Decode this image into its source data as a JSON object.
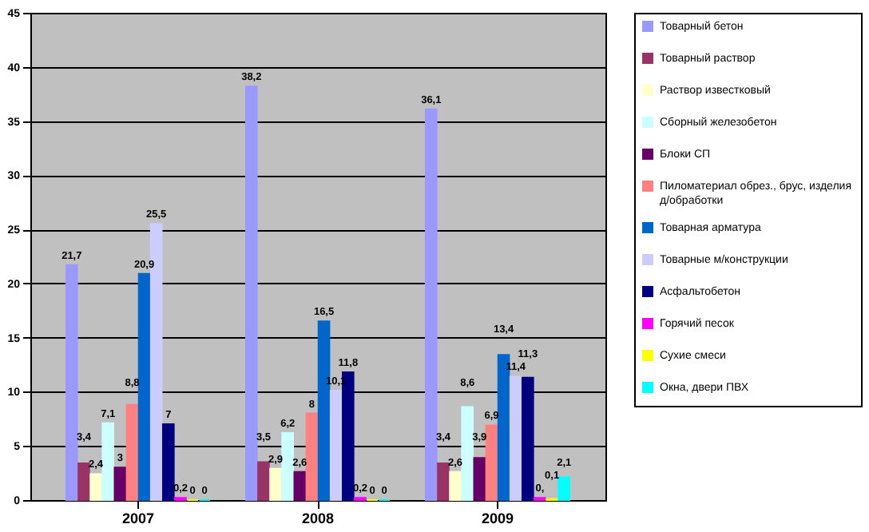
{
  "chart_data": {
    "type": "bar",
    "categories": [
      "2007",
      "2008",
      "2009"
    ],
    "ylim": [
      0,
      45
    ],
    "yticks": [
      0,
      5,
      10,
      15,
      20,
      25,
      30,
      35,
      40,
      45
    ],
    "grid": "y",
    "legend": "right",
    "series": [
      {
        "name": "Товарный бетон",
        "color": "#9999ff",
        "values": [
          21.7,
          38.2,
          36.1
        ],
        "value_labels": [
          "21,7",
          "38,2",
          "36,1"
        ]
      },
      {
        "name": "Товарный раствор",
        "color": "#993366",
        "values": [
          3.4,
          3.5,
          3.4
        ],
        "value_labels": [
          "3,4",
          "3,5",
          "3,4"
        ]
      },
      {
        "name": "Раствор известковый",
        "color": "#ffffcc",
        "values": [
          2.4,
          2.9,
          2.6
        ],
        "value_labels": [
          "2,4",
          "2,9",
          "2,6"
        ]
      },
      {
        "name": "Сборный железобетон",
        "color": "#ccffff",
        "values": [
          7.1,
          6.2,
          8.6
        ],
        "value_labels": [
          "7,1",
          "6,2",
          "8,6"
        ]
      },
      {
        "name": "Блоки СП",
        "color": "#660066",
        "values": [
          3,
          2.6,
          3.9
        ],
        "value_labels": [
          "3",
          "2,6",
          "3,9"
        ]
      },
      {
        "name": "Пиломатериал обрез., брус, изделия д/обработки",
        "color": "#ff8080",
        "values": [
          8.8,
          8,
          6.9
        ],
        "value_labels": [
          "8,8",
          "8",
          "6,9"
        ]
      },
      {
        "name": "Товарная арматура",
        "color": "#0066cc",
        "values": [
          20.9,
          16.5,
          13.4
        ],
        "value_labels": [
          "20,9",
          "16,5",
          "13,4"
        ]
      },
      {
        "name": "Товарные м/конструкции",
        "color": "#ccccff",
        "values": [
          25.5,
          10.1,
          11.4
        ],
        "value_labels": [
          "25,5",
          "10,1",
          "11,4"
        ]
      },
      {
        "name": "Асфальтобетон",
        "color": "#000080",
        "values": [
          7,
          11.8,
          11.3
        ],
        "value_labels": [
          "7",
          "11,8",
          "11,3"
        ]
      },
      {
        "name": "Горячий песок",
        "color": "#ff00ff",
        "values": [
          0.2,
          0.2,
          0.2
        ],
        "value_labels": [
          "0,2",
          "0,2",
          "0,"
        ]
      },
      {
        "name": "Сухие смеси",
        "color": "#ffff00",
        "values": [
          0,
          0,
          0.1
        ],
        "value_labels": [
          "0",
          "0",
          "0,1"
        ]
      },
      {
        "name": "Окна, двери ПВХ",
        "color": "#00ffff",
        "values": [
          0,
          0,
          2.1
        ],
        "value_labels": [
          "0",
          "0",
          "2,1"
        ]
      }
    ]
  }
}
